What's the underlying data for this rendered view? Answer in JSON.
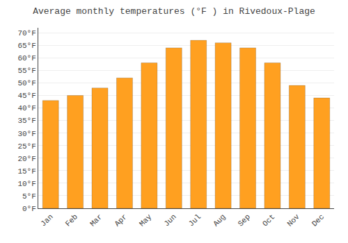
{
  "chart_data": {
    "type": "bar",
    "title": "Average monthly temperatures (°F ) in Rivedoux-Plage",
    "categories": [
      "Jan",
      "Feb",
      "Mar",
      "Apr",
      "May",
      "Jun",
      "Jul",
      "Aug",
      "Sep",
      "Oct",
      "Nov",
      "Dec"
    ],
    "values": [
      43,
      45,
      48,
      52,
      58,
      64,
      67,
      66,
      64,
      58,
      49,
      44
    ],
    "color": "#FFA020",
    "ylim": [
      0,
      72
    ],
    "yticks": [
      {
        "value": 0,
        "label": "0°F"
      },
      {
        "value": 5,
        "label": "5°F"
      },
      {
        "value": 10,
        "label": "10°F"
      },
      {
        "value": 15,
        "label": "15°F"
      },
      {
        "value": 20,
        "label": "20°F"
      },
      {
        "value": 25,
        "label": "25°F"
      },
      {
        "value": 30,
        "label": "30°F"
      },
      {
        "value": 35,
        "label": "35°F"
      },
      {
        "value": 40,
        "label": "40°F"
      },
      {
        "value": 45,
        "label": "45°F"
      },
      {
        "value": 50,
        "label": "50°F"
      },
      {
        "value": 55,
        "label": "55°F"
      },
      {
        "value": 60,
        "label": "60°F"
      },
      {
        "value": 65,
        "label": "65°F"
      },
      {
        "value": 70,
        "label": "70°F"
      }
    ],
    "grid": true
  }
}
